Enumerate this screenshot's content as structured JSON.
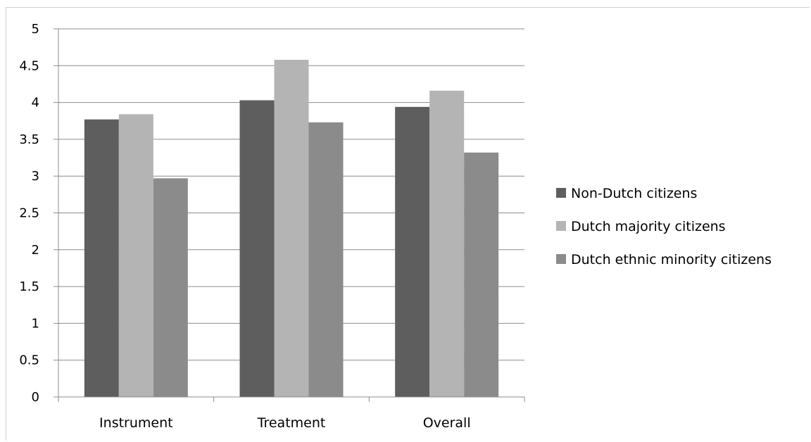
{
  "chart_data": {
    "type": "bar",
    "title": "",
    "xlabel": "",
    "ylabel": "",
    "categories": [
      "Instrument",
      "Treatment",
      "Overall"
    ],
    "series": [
      {
        "name": "Non-Dutch citizens",
        "values": [
          3.77,
          4.03,
          3.94
        ],
        "color": "#5e5e5e"
      },
      {
        "name": "Dutch majority citizens",
        "values": [
          3.84,
          4.58,
          4.16
        ],
        "color": "#b4b4b4"
      },
      {
        "name": "Dutch ethnic minority citizens",
        "values": [
          2.97,
          3.73,
          3.32
        ],
        "color": "#8b8b8b"
      }
    ],
    "ylim": [
      0,
      5
    ],
    "yticks": [
      "0",
      "0.5",
      "1",
      "1.5",
      "2",
      "2.5",
      "3",
      "3.5",
      "4",
      "4.5",
      "5"
    ],
    "grid": true,
    "legend_position": "right"
  }
}
